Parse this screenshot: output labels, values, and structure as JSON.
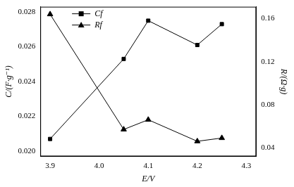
{
  "chart_data": {
    "type": "line",
    "x_label": "E/V",
    "y_label": "C/(F·g⁻¹)",
    "y2_label": "R/(Ω·g)",
    "xlim": [
      3.88,
      4.32
    ],
    "xticks": [
      3.9,
      {
        "value": 4.0,
        "label": "4.0"
      },
      4.1,
      4.2,
      4.3
    ],
    "ylim": [
      0.0197,
      0.0283
    ],
    "yticks": [
      {
        "value": 0.02,
        "label": "0.020"
      },
      0.022,
      0.024,
      0.026,
      0.028
    ],
    "y2lim": [
      0.032,
      0.171
    ],
    "y2ticks": [
      0.04,
      0.08,
      0.12,
      0.16
    ],
    "grid": false,
    "legend": "upper left",
    "series": [
      {
        "name": "Cf",
        "color": "#000000",
        "marker": "square",
        "line_style": "solid",
        "x": [
          3.9,
          4.05,
          4.1,
          4.2,
          4.25
        ],
        "values": [
          0.0207,
          0.0253,
          0.0275,
          0.0261,
          0.0273
        ]
      },
      {
        "name": "Rf",
        "color": "#000000",
        "marker": "triangle",
        "line_style": "solid",
        "axis": "y2",
        "x": [
          3.9,
          4.05,
          4.1,
          4.2,
          4.25
        ],
        "values": [
          0.164,
          0.057,
          0.066,
          0.046,
          0.049
        ]
      }
    ]
  }
}
